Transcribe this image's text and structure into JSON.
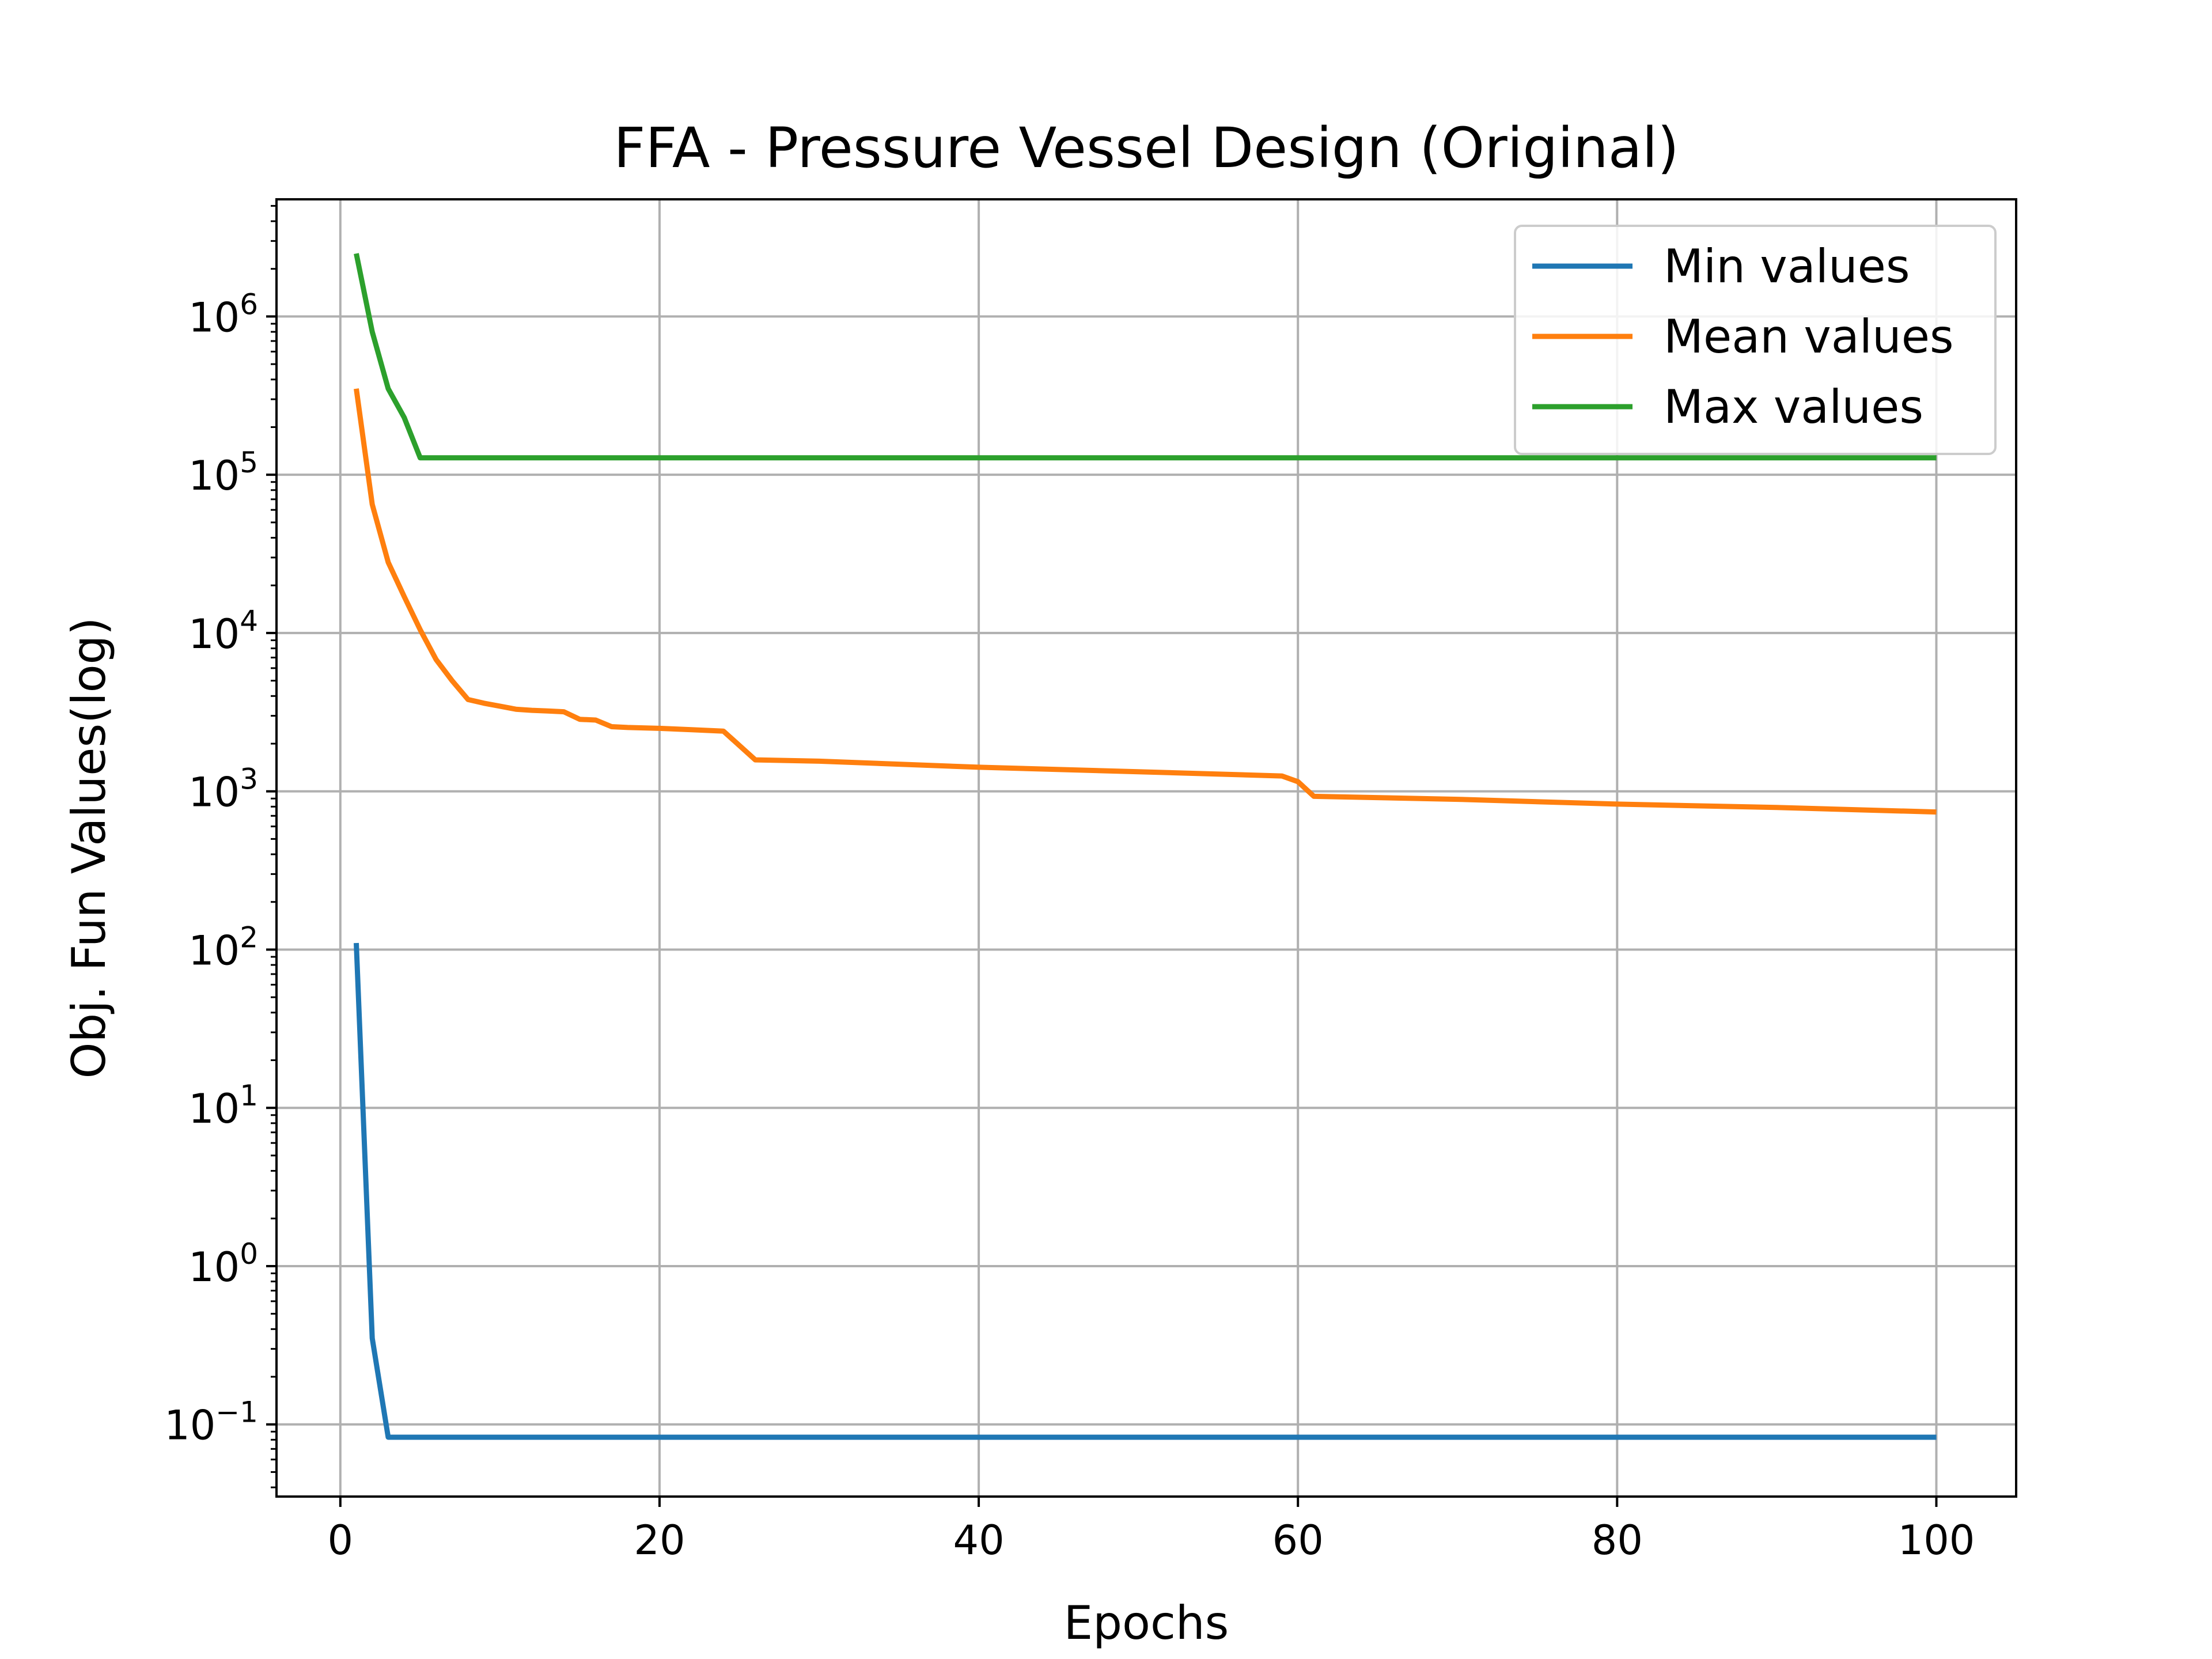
{
  "chart_data": {
    "type": "line",
    "title": "FFA - Pressure Vessel Design (Original)",
    "xlabel": "Epochs",
    "ylabel": "Obj. Fun Values(log)",
    "yscale": "log",
    "grid": true,
    "legend_position": "top-right",
    "xlim": [
      -4.0,
      105.0
    ],
    "ylim": [
      0.035,
      5500000
    ],
    "xticks": [
      0,
      20,
      40,
      60,
      80,
      100
    ],
    "xtick_labels": [
      "0",
      "20",
      "40",
      "60",
      "80",
      "100"
    ],
    "yticks": [
      0.1,
      1,
      10,
      100,
      1000,
      10000,
      100000,
      1000000
    ],
    "ytick_labels": [
      {
        "base": "10",
        "exp": "−1"
      },
      {
        "base": "10",
        "exp": "0"
      },
      {
        "base": "10",
        "exp": "1"
      },
      {
        "base": "10",
        "exp": "2"
      },
      {
        "base": "10",
        "exp": "3"
      },
      {
        "base": "10",
        "exp": "4"
      },
      {
        "base": "10",
        "exp": "5"
      },
      {
        "base": "10",
        "exp": "6"
      }
    ],
    "series": [
      {
        "name": "Min values",
        "color": "#1f77b4",
        "x": [
          1,
          2,
          3,
          100
        ],
        "y": [
          110,
          0.35,
          0.083,
          0.083
        ]
      },
      {
        "name": "Mean values",
        "color": "#ff7f0e",
        "x": [
          1,
          2,
          3,
          4,
          5,
          6,
          7,
          8,
          9,
          10,
          11,
          12,
          13,
          14,
          15,
          16,
          17,
          18,
          20,
          22,
          24,
          26,
          30,
          40,
          50,
          59,
          60,
          61,
          70,
          80,
          90,
          100
        ],
        "y": [
          350000,
          65000,
          28000,
          17000,
          10500,
          6800,
          5000,
          3800,
          3600,
          3450,
          3300,
          3250,
          3220,
          3180,
          2850,
          2820,
          2560,
          2530,
          2500,
          2450,
          2400,
          1580,
          1550,
          1420,
          1330,
          1250,
          1150,
          930,
          890,
          830,
          790,
          740
        ]
      },
      {
        "name": "Max values",
        "color": "#2ca02c",
        "x": [
          1,
          2,
          3,
          4,
          5,
          100
        ],
        "y": [
          2500000,
          800000,
          350000,
          230000,
          128000,
          128000
        ]
      }
    ]
  }
}
